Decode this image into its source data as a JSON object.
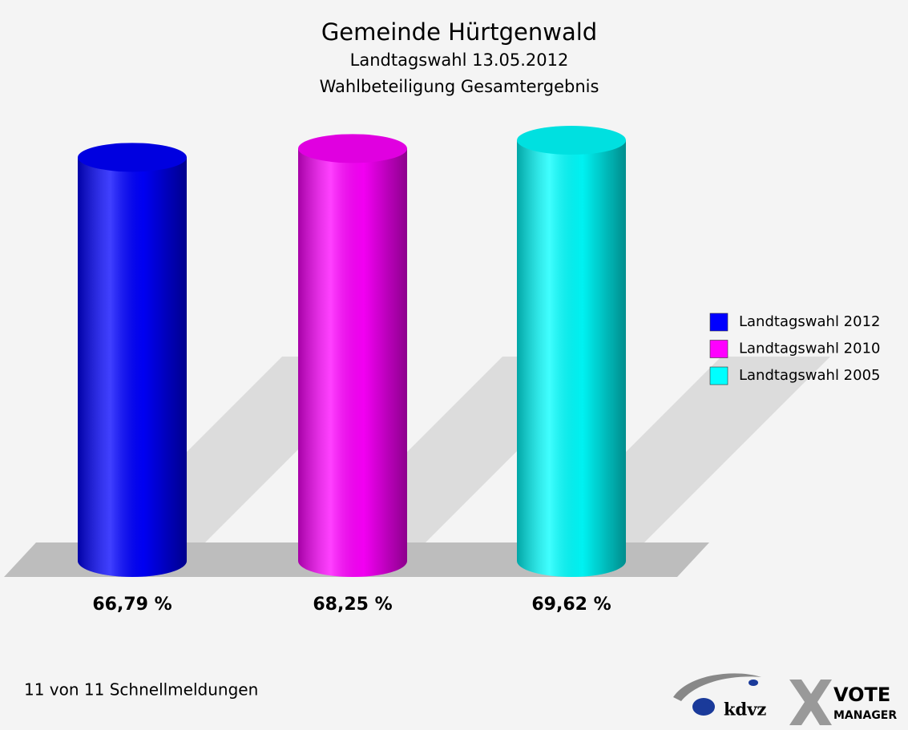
{
  "chart_data": {
    "type": "cylinder-bar",
    "title": "Gemeinde Hürtgenwald",
    "subtitle": [
      "Landtagswahl 13.05.2012",
      "Wahlbeteiligung Gesamtergebnis"
    ],
    "categories": [
      "Landtagswahl 2012",
      "Landtagswahl 2010",
      "Landtagswahl 2005"
    ],
    "values": [
      66.79,
      68.25,
      69.62
    ],
    "value_labels": [
      "66,79 %",
      "68,25 %",
      "69,62 %"
    ],
    "colors": [
      "#0000ff",
      "#ff00ff",
      "#00ffff"
    ],
    "legend": "right"
  },
  "footer": "11 von 11 Schnellmeldungen",
  "logo": {
    "brand": "kdvz",
    "product": [
      "VOTE",
      "MANAGER"
    ]
  }
}
